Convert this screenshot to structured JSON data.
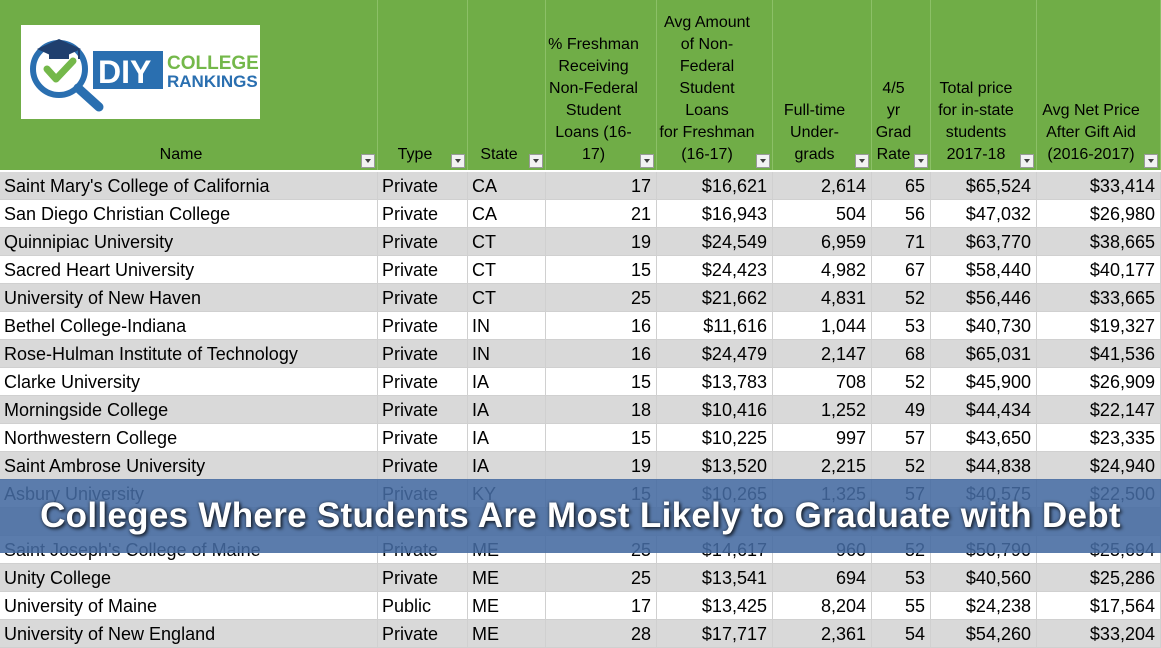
{
  "logo": {
    "brand_diy": "DIY",
    "brand_college": "COLLEGE",
    "brand_rankings": "RANKINGS",
    "icon": "magnifier-graduation-cap-check-icon"
  },
  "columns": [
    {
      "label": "Name"
    },
    {
      "label": "Type"
    },
    {
      "label": "State"
    },
    {
      "label": "% Freshman\nReceiving\nNon-Federal\nStudent\nLoans (16-17)"
    },
    {
      "label": "Avg Amount\nof Non-\nFederal\nStudent Loans\nfor Freshman\n(16-17)"
    },
    {
      "label": "Full-time\nUnder-\ngrads"
    },
    {
      "label": "4/5 yr\nGrad\nRate"
    },
    {
      "label": "Total price\nfor in-state\nstudents\n2017-18"
    },
    {
      "label": "Avg Net Price\nAfter Gift Aid\n(2016-2017)"
    }
  ],
  "rows": [
    [
      "Saint Mary's College of California",
      "Private",
      "CA",
      "17",
      "$16,621",
      "2,614",
      "65",
      "$65,524",
      "$33,414"
    ],
    [
      "San Diego Christian College",
      "Private",
      "CA",
      "21",
      "$16,943",
      "504",
      "56",
      "$47,032",
      "$26,980"
    ],
    [
      "Quinnipiac University",
      "Private",
      "CT",
      "19",
      "$24,549",
      "6,959",
      "71",
      "$63,770",
      "$38,665"
    ],
    [
      "Sacred Heart University",
      "Private",
      "CT",
      "15",
      "$24,423",
      "4,982",
      "67",
      "$58,440",
      "$40,177"
    ],
    [
      "University of New Haven",
      "Private",
      "CT",
      "25",
      "$21,662",
      "4,831",
      "52",
      "$56,446",
      "$33,665"
    ],
    [
      "Bethel College-Indiana",
      "Private",
      "IN",
      "16",
      "$11,616",
      "1,044",
      "53",
      "$40,730",
      "$19,327"
    ],
    [
      "Rose-Hulman Institute of Technology",
      "Private",
      "IN",
      "16",
      "$24,479",
      "2,147",
      "68",
      "$65,031",
      "$41,536"
    ],
    [
      "Clarke University",
      "Private",
      "IA",
      "15",
      "$13,783",
      "708",
      "52",
      "$45,900",
      "$26,909"
    ],
    [
      "Morningside College",
      "Private",
      "IA",
      "18",
      "$10,416",
      "1,252",
      "49",
      "$44,434",
      "$22,147"
    ],
    [
      "Northwestern College",
      "Private",
      "IA",
      "15",
      "$10,225",
      "997",
      "57",
      "$43,650",
      "$23,335"
    ],
    [
      "Saint Ambrose University",
      "Private",
      "IA",
      "19",
      "$13,520",
      "2,215",
      "52",
      "$44,838",
      "$24,940"
    ],
    [
      "Asbury University",
      "Private",
      "KY",
      "15",
      "$10,265",
      "1,325",
      "57",
      "$40,575",
      "$22,500"
    ],
    [
      "",
      "",
      "",
      "",
      "",
      "",
      "",
      "",
      ""
    ],
    [
      "Saint Joseph's College of Maine",
      "Private",
      "ME",
      "25",
      "$14,617",
      "960",
      "52",
      "$50,790",
      "$25,694"
    ],
    [
      "Unity College",
      "Private",
      "ME",
      "25",
      "$13,541",
      "694",
      "53",
      "$40,560",
      "$25,286"
    ],
    [
      "University of Maine",
      "Public",
      "ME",
      "17",
      "$13,425",
      "8,204",
      "55",
      "$24,238",
      "$17,564"
    ],
    [
      "University of New England",
      "Private",
      "ME",
      "28",
      "$17,717",
      "2,361",
      "54",
      "$54,260",
      "$33,204"
    ]
  ],
  "banner": {
    "title": "Colleges Where Students Are Most Likely to Graduate with Debt"
  },
  "colors": {
    "header_green": "#70ad47",
    "row_shade": "#d9d9d9",
    "banner_blue": "#446aa0"
  }
}
